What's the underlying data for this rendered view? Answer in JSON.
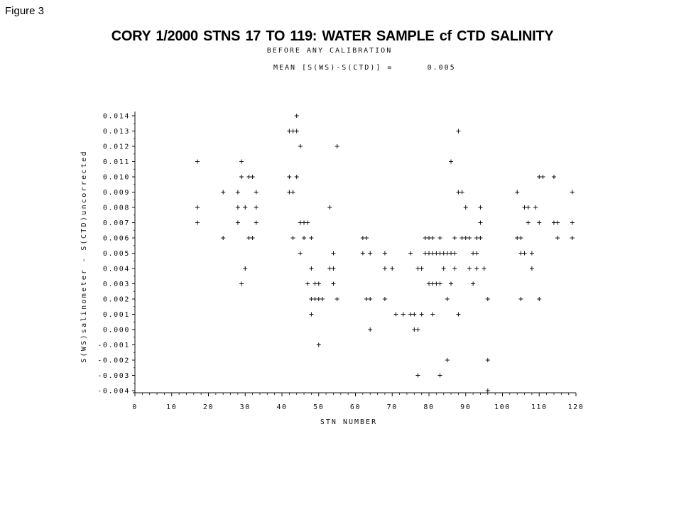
{
  "figure_label": "Figure 3",
  "chart_data": {
    "type": "scatter",
    "title": "CORY 1/2000   STNS 17 TO 119: WATER SAMPLE cf CTD SALINITY",
    "subtitle": "BEFORE ANY CALIBRATION",
    "annotation_label": "MEAN [S(WS)-S(CTD)] =",
    "annotation_value": "0.005",
    "xlabel": "STN NUMBER",
    "ylabel": "S(WS)salinometer - S(CTD)uncorrected",
    "xlim": [
      0,
      120
    ],
    "ylim": [
      -0.004,
      0.014
    ],
    "x_ticks": [
      "0",
      "10",
      "20",
      "30",
      "40",
      "50",
      "60",
      "70",
      "80",
      "90",
      "100",
      "110",
      "120"
    ],
    "y_ticks": [
      "0.014",
      "0.013",
      "0.012",
      "0.011",
      "0.010",
      "0.009",
      "0.008",
      "0.007",
      "0.006",
      "0.005",
      "0.004",
      "0.003",
      "0.002",
      "0.001",
      "0.000",
      "-0.001",
      "-0.002",
      "-0.003",
      "-0.004"
    ],
    "marker": "+",
    "grid": false,
    "points": [
      [
        17,
        0.011
      ],
      [
        17,
        0.008
      ],
      [
        17,
        0.007
      ],
      [
        24,
        0.009
      ],
      [
        24,
        0.006
      ],
      [
        28,
        0.009
      ],
      [
        28,
        0.008
      ],
      [
        28,
        0.007
      ],
      [
        29,
        0.011
      ],
      [
        29,
        0.01
      ],
      [
        29,
        0.003
      ],
      [
        30,
        0.008
      ],
      [
        30,
        0.004
      ],
      [
        31,
        0.01
      ],
      [
        31,
        0.006
      ],
      [
        32,
        0.01
      ],
      [
        32,
        0.006
      ],
      [
        33,
        0.009
      ],
      [
        33,
        0.008
      ],
      [
        33,
        0.007
      ],
      [
        42,
        0.013
      ],
      [
        42,
        0.01
      ],
      [
        42,
        0.009
      ],
      [
        43,
        0.013
      ],
      [
        43,
        0.009
      ],
      [
        43,
        0.006
      ],
      [
        44,
        0.014
      ],
      [
        44,
        0.013
      ],
      [
        44,
        0.01
      ],
      [
        45,
        0.012
      ],
      [
        45,
        0.007
      ],
      [
        45,
        0.005
      ],
      [
        46,
        0.007
      ],
      [
        46,
        0.006
      ],
      [
        47,
        0.007
      ],
      [
        47,
        0.003
      ],
      [
        48,
        0.006
      ],
      [
        48,
        0.004
      ],
      [
        48,
        0.002
      ],
      [
        48,
        0.001
      ],
      [
        49,
        0.003
      ],
      [
        49,
        0.002
      ],
      [
        50,
        0.003
      ],
      [
        50,
        0.002
      ],
      [
        50,
        -0.001
      ],
      [
        51,
        0.002
      ],
      [
        53,
        0.008
      ],
      [
        53,
        0.004
      ],
      [
        54,
        0.005
      ],
      [
        54,
        0.004
      ],
      [
        54,
        0.003
      ],
      [
        55,
        0.012
      ],
      [
        55,
        0.002
      ],
      [
        62,
        0.006
      ],
      [
        62,
        0.005
      ],
      [
        63,
        0.006
      ],
      [
        63,
        0.002
      ],
      [
        64,
        0.005
      ],
      [
        64,
        0.002
      ],
      [
        64,
        0.0
      ],
      [
        68,
        0.005
      ],
      [
        68,
        0.004
      ],
      [
        68,
        0.002
      ],
      [
        70,
        0.004
      ],
      [
        71,
        0.001
      ],
      [
        73,
        0.001
      ],
      [
        75,
        0.005
      ],
      [
        75,
        0.001
      ],
      [
        76,
        0.001
      ],
      [
        76,
        0.0
      ],
      [
        77,
        0.004
      ],
      [
        77,
        0.0
      ],
      [
        77,
        -0.003
      ],
      [
        78,
        0.004
      ],
      [
        78,
        0.001
      ],
      [
        79,
        0.006
      ],
      [
        79,
        0.005
      ],
      [
        80,
        0.006
      ],
      [
        80,
        0.005
      ],
      [
        80,
        0.003
      ],
      [
        81,
        0.006
      ],
      [
        81,
        0.005
      ],
      [
        81,
        0.003
      ],
      [
        81,
        0.001
      ],
      [
        82,
        0.005
      ],
      [
        82,
        0.003
      ],
      [
        83,
        0.006
      ],
      [
        83,
        0.005
      ],
      [
        83,
        0.003
      ],
      [
        83,
        -0.003
      ],
      [
        84,
        0.005
      ],
      [
        84,
        0.004
      ],
      [
        85,
        0.005
      ],
      [
        85,
        0.002
      ],
      [
        85,
        -0.002
      ],
      [
        86,
        0.011
      ],
      [
        86,
        0.005
      ],
      [
        86,
        0.003
      ],
      [
        87,
        0.006
      ],
      [
        87,
        0.005
      ],
      [
        87,
        0.004
      ],
      [
        88,
        0.013
      ],
      [
        88,
        0.009
      ],
      [
        88,
        0.001
      ],
      [
        89,
        0.009
      ],
      [
        89,
        0.006
      ],
      [
        90,
        0.008
      ],
      [
        90,
        0.006
      ],
      [
        91,
        0.006
      ],
      [
        91,
        0.004
      ],
      [
        92,
        0.005
      ],
      [
        92,
        0.003
      ],
      [
        93,
        0.006
      ],
      [
        93,
        0.005
      ],
      [
        93,
        0.004
      ],
      [
        94,
        0.008
      ],
      [
        94,
        0.007
      ],
      [
        94,
        0.006
      ],
      [
        95,
        0.004
      ],
      [
        96,
        0.002
      ],
      [
        96,
        -0.002
      ],
      [
        96,
        -0.004
      ],
      [
        104,
        0.009
      ],
      [
        104,
        0.006
      ],
      [
        105,
        0.006
      ],
      [
        105,
        0.005
      ],
      [
        105,
        0.002
      ],
      [
        106,
        0.008
      ],
      [
        106,
        0.005
      ],
      [
        107,
        0.008
      ],
      [
        107,
        0.007
      ],
      [
        108,
        0.005
      ],
      [
        108,
        0.004
      ],
      [
        109,
        0.008
      ],
      [
        110,
        0.01
      ],
      [
        110,
        0.007
      ],
      [
        110,
        0.002
      ],
      [
        111,
        0.01
      ],
      [
        114,
        0.01
      ],
      [
        114,
        0.007
      ],
      [
        115,
        0.007
      ],
      [
        115,
        0.006
      ],
      [
        119,
        0.009
      ],
      [
        119,
        0.007
      ],
      [
        119,
        0.006
      ]
    ]
  }
}
